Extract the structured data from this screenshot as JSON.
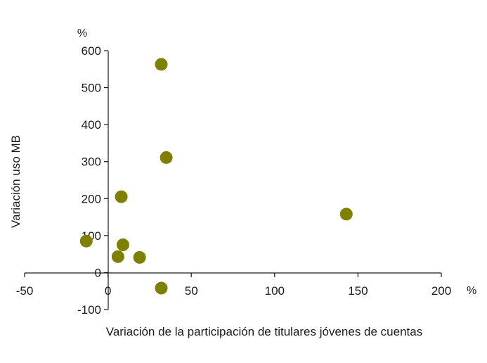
{
  "chart_data": {
    "type": "scatter",
    "title": "",
    "xlabel": "Variación de la participación de titulares jóvenes de cuentas",
    "ylabel": "Variación uso MB",
    "x_unit": "%",
    "y_unit": "%",
    "xlim": [
      -50,
      200
    ],
    "ylim": [
      -100,
      600
    ],
    "x_ticks": [
      -50,
      0,
      50,
      100,
      150,
      200
    ],
    "y_ticks": [
      -100,
      0,
      100,
      200,
      300,
      400,
      500,
      600
    ],
    "grid": false,
    "legend": "none",
    "marker_color": "#808000",
    "points": [
      {
        "x": 32,
        "y": 563
      },
      {
        "x": 35,
        "y": 311
      },
      {
        "x": 8,
        "y": 205
      },
      {
        "x": 143,
        "y": 158
      },
      {
        "x": -13,
        "y": 85
      },
      {
        "x": 9,
        "y": 75
      },
      {
        "x": 6,
        "y": 43
      },
      {
        "x": 19,
        "y": 41
      },
      {
        "x": 32,
        "y": -42
      }
    ]
  }
}
